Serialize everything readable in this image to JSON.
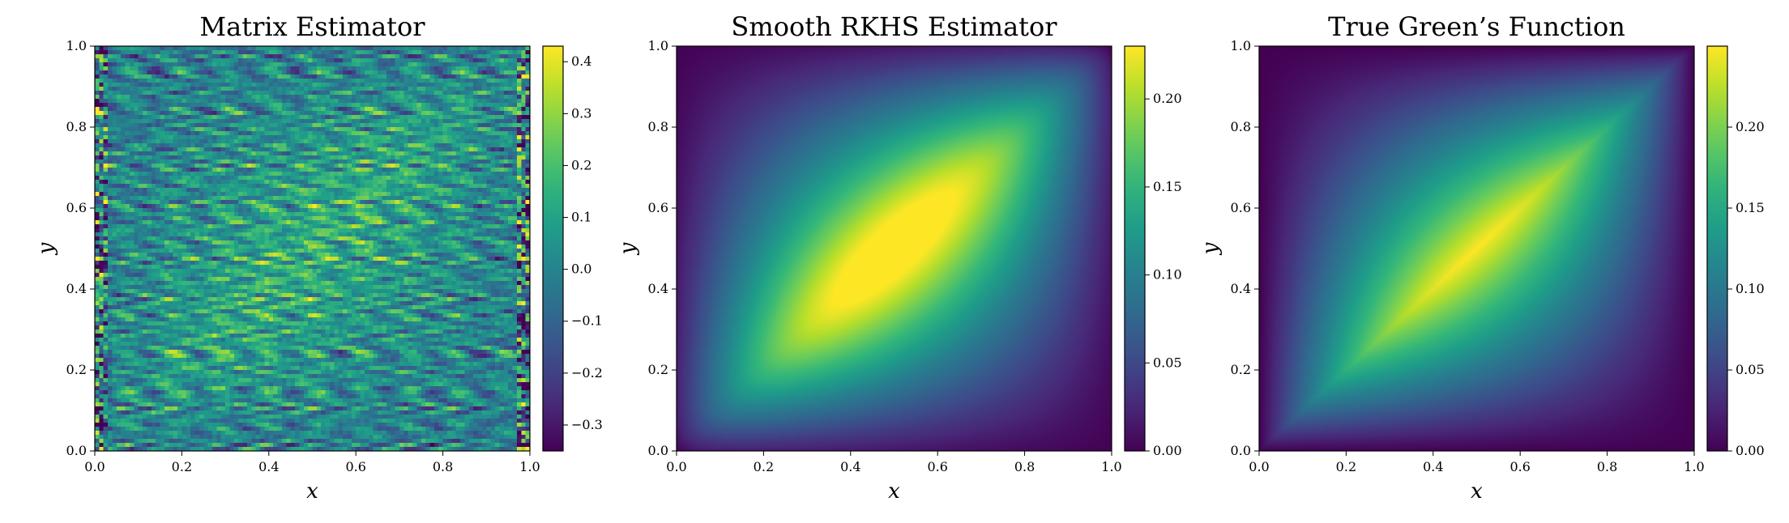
{
  "chart_data": [
    {
      "type": "heatmap",
      "title": "Matrix Estimator",
      "xlabel": "x",
      "ylabel": "y",
      "xlim": [
        0.0,
        1.0
      ],
      "ylim": [
        0.0,
        1.0
      ],
      "xticks": [
        "0.0",
        "0.2",
        "0.4",
        "0.6",
        "0.8",
        "1.0"
      ],
      "yticks": [
        "0.0",
        "0.2",
        "0.4",
        "0.6",
        "0.8",
        "1.0"
      ],
      "colorbar": {
        "min": -0.35,
        "max": 0.43,
        "ticks": [
          -0.3,
          -0.2,
          -0.1,
          0.0,
          0.1,
          0.2,
          0.3,
          0.4
        ],
        "tick_labels": [
          "−0.3",
          "−0.2",
          "−0.1",
          "0.0",
          "0.1",
          "0.2",
          "0.3",
          "0.4"
        ]
      },
      "colormap": "viridis",
      "field": "noisy-matrix"
    },
    {
      "type": "heatmap",
      "title": "Smooth RKHS Estimator",
      "xlabel": "x",
      "ylabel": "y",
      "xlim": [
        0.0,
        1.0
      ],
      "ylim": [
        0.0,
        1.0
      ],
      "xticks": [
        "0.0",
        "0.2",
        "0.4",
        "0.6",
        "0.8",
        "1.0"
      ],
      "yticks": [
        "0.0",
        "0.2",
        "0.4",
        "0.6",
        "0.8",
        "1.0"
      ],
      "colorbar": {
        "min": 0.0,
        "max": 0.23,
        "ticks": [
          0.0,
          0.05,
          0.1,
          0.15,
          0.2
        ],
        "tick_labels": [
          "0.00",
          "0.05",
          "0.10",
          "0.15",
          "0.20"
        ]
      },
      "colormap": "viridis",
      "field": "smooth-green"
    },
    {
      "type": "heatmap",
      "title": "True Green’s Function",
      "xlabel": "x",
      "ylabel": "y",
      "xlim": [
        0.0,
        1.0
      ],
      "ylim": [
        0.0,
        1.0
      ],
      "xticks": [
        "0.0",
        "0.2",
        "0.4",
        "0.6",
        "0.8",
        "1.0"
      ],
      "yticks": [
        "0.0",
        "0.2",
        "0.4",
        "0.6",
        "0.8",
        "1.0"
      ],
      "colorbar": {
        "min": 0.0,
        "max": 0.25,
        "ticks": [
          0.0,
          0.05,
          0.1,
          0.15,
          0.2
        ],
        "tick_labels": [
          "0.00",
          "0.05",
          "0.10",
          "0.15",
          "0.20"
        ]
      },
      "colormap": "viridis",
      "field": "green-function"
    }
  ]
}
